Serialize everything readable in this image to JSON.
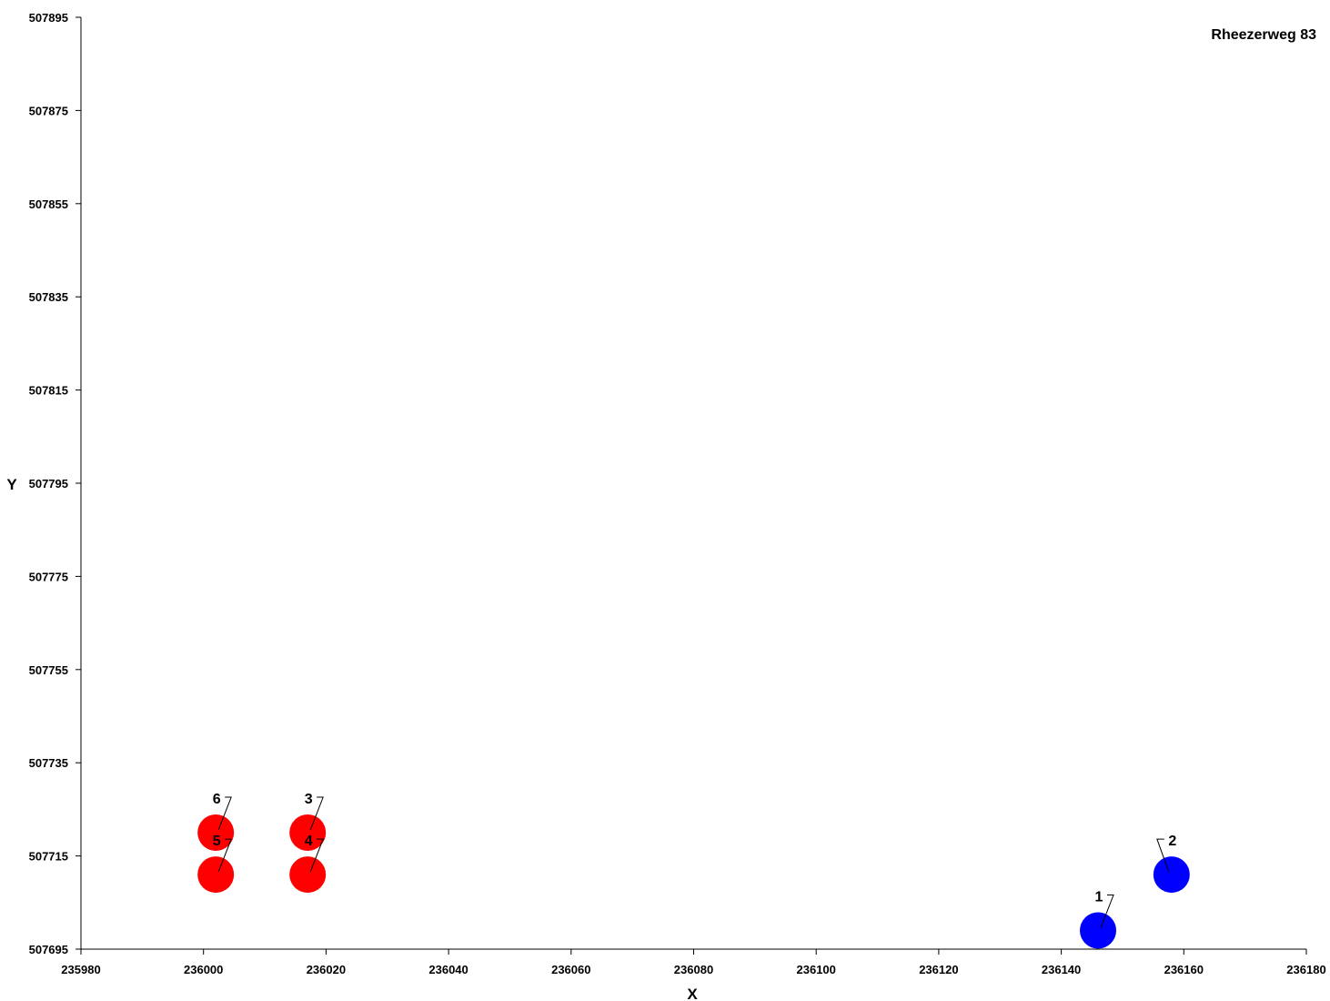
{
  "chart_data": {
    "type": "scatter",
    "title": "Rheezerweg 83",
    "xlabel": "X",
    "ylabel": "Y",
    "xlim": [
      235980,
      236180
    ],
    "ylim": [
      507695,
      507895
    ],
    "x_ticks": [
      "235980",
      "236000",
      "236020",
      "236040",
      "236060",
      "236080",
      "236100",
      "236120",
      "236140",
      "236160",
      "236180"
    ],
    "y_ticks": [
      "507695",
      "507715",
      "507735",
      "507755",
      "507775",
      "507795",
      "507815",
      "507835",
      "507855",
      "507875",
      "507895"
    ],
    "grid": false,
    "colors": {
      "red": "#ff0000",
      "blue": "#0000ff",
      "axis": "#000000"
    },
    "points": [
      {
        "label": "1",
        "x": 236146,
        "y": 507699,
        "color": "blue"
      },
      {
        "label": "2",
        "x": 236158,
        "y": 507711,
        "color": "blue"
      },
      {
        "label": "3",
        "x": 236017,
        "y": 507720,
        "color": "red"
      },
      {
        "label": "4",
        "x": 236017,
        "y": 507711,
        "color": "red"
      },
      {
        "label": "5",
        "x": 236002,
        "y": 507711,
        "color": "red"
      },
      {
        "label": "6",
        "x": 236002,
        "y": 507720,
        "color": "red"
      }
    ]
  }
}
